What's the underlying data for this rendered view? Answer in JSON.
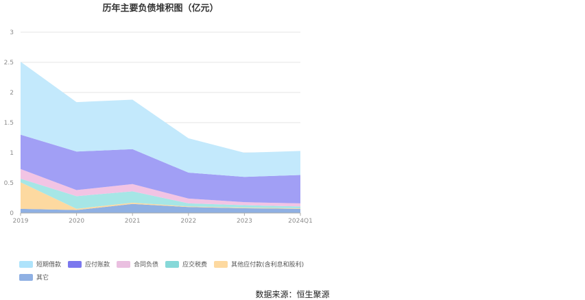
{
  "chart_data": {
    "type": "area",
    "stacked": true,
    "title": "历年主要负债堆积图（亿元）",
    "categories": [
      "2019",
      "2020",
      "2021",
      "2022",
      "2023",
      "2024Q1"
    ],
    "ylim": [
      0,
      3
    ],
    "yticks": [
      "0",
      "0.5",
      "1",
      "1.5",
      "2",
      "2.5",
      "3"
    ],
    "grid": true,
    "legend_position": "bottom-left",
    "series": [
      {
        "name": "其它",
        "color": "#8fb0e3",
        "values": [
          0.07,
          0.05,
          0.15,
          0.1,
          0.08,
          0.07
        ]
      },
      {
        "name": "其他应付款(含利息和股利)",
        "color": "#fdd9a0",
        "values": [
          0.44,
          0.02,
          0.02,
          0.01,
          0.01,
          0.01
        ]
      },
      {
        "name": "应交税费",
        "color": "#a6e6e6",
        "values": [
          0.06,
          0.21,
          0.19,
          0.05,
          0.04,
          0.03
        ]
      },
      {
        "name": "合同负债",
        "color": "#f2c4e4",
        "values": [
          0.16,
          0.1,
          0.12,
          0.08,
          0.05,
          0.05
        ]
      },
      {
        "name": "应付账款",
        "color": "#a19ff5",
        "values": [
          0.57,
          0.64,
          0.58,
          0.43,
          0.42,
          0.47
        ]
      },
      {
        "name": "短期借款",
        "color": "#c3e9fc",
        "values": [
          1.21,
          0.82,
          0.82,
          0.57,
          0.4,
          0.4
        ]
      }
    ],
    "legend_order": [
      "短期借款",
      "应付账款",
      "合同负债",
      "应交税费",
      "其他应付款(含利息和股利)",
      "其它"
    ],
    "legend_colors": {
      "短期借款": "#aee3fb",
      "应付账款": "#7b78ee",
      "合同负债": "#eabfe0",
      "应交税费": "#86d8d8",
      "其他应付款(含利息和股利)": "#fdd9a0",
      "其它": "#8fb0e3"
    }
  },
  "source_text": "数据来源：恒生聚源"
}
